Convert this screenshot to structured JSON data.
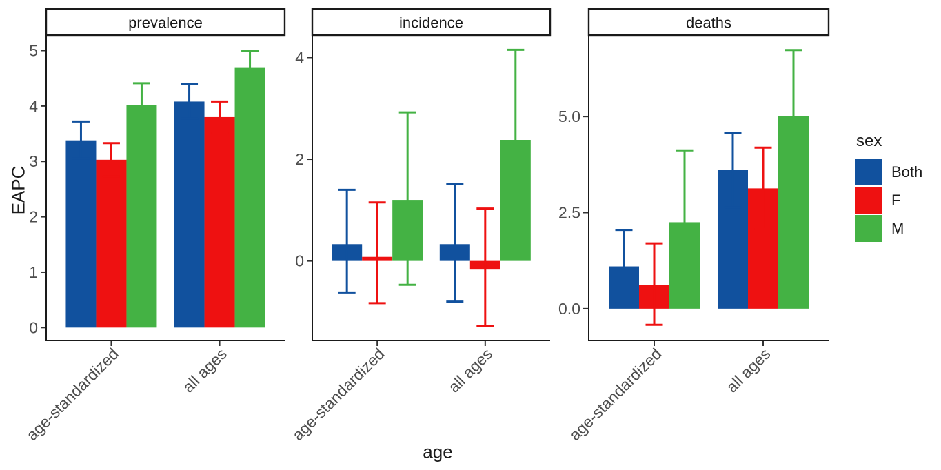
{
  "chart_data": {
    "type": "bar",
    "subtype": "grouped-faceted-with-error-bars",
    "xlabel": "age",
    "ylabel": "EAPC",
    "grid": false,
    "error_bars": true,
    "legend": {
      "title": "sex",
      "position": "right",
      "items": [
        {
          "label": "Both",
          "color": "#11519E"
        },
        {
          "label": "F",
          "color": "#EE1111"
        },
        {
          "label": "M",
          "color": "#44B244"
        }
      ]
    },
    "categories": [
      "age-standardized",
      "all ages"
    ],
    "facets": [
      {
        "title": "prevalence",
        "ylim": [
          -0.22,
          5.28
        ],
        "yticks": [
          {
            "v": 0,
            "label": "0"
          },
          {
            "v": 1,
            "label": "1"
          },
          {
            "v": 2,
            "label": "2"
          },
          {
            "v": 3,
            "label": "3"
          },
          {
            "v": 4,
            "label": "4"
          },
          {
            "v": 5,
            "label": "5"
          }
        ],
        "series": [
          {
            "name": "Both",
            "values": [
              3.38,
              4.08
            ],
            "ci_low": [
              3.05,
              3.77
            ],
            "ci_high": [
              3.72,
              4.39
            ]
          },
          {
            "name": "F",
            "values": [
              3.03,
              3.8
            ],
            "ci_low": [
              2.73,
              3.52
            ],
            "ci_high": [
              3.33,
              4.08
            ]
          },
          {
            "name": "M",
            "values": [
              4.02,
              4.7
            ],
            "ci_low": [
              3.63,
              4.4
            ],
            "ci_high": [
              4.41,
              5.0
            ]
          }
        ]
      },
      {
        "title": "incidence",
        "ylim": [
          -1.55,
          4.44
        ],
        "yticks": [
          {
            "v": 0,
            "label": "0"
          },
          {
            "v": 2,
            "label": "2"
          },
          {
            "v": 4,
            "label": "4"
          }
        ],
        "series": [
          {
            "name": "Both",
            "values": [
              0.33,
              0.33
            ],
            "ci_low": [
              -0.62,
              -0.8
            ],
            "ci_high": [
              1.4,
              1.51
            ]
          },
          {
            "name": "F",
            "values": [
              0.08,
              -0.17
            ],
            "ci_low": [
              -0.83,
              -1.28
            ],
            "ci_high": [
              1.15,
              1.03
            ]
          },
          {
            "name": "M",
            "values": [
              1.2,
              2.38
            ],
            "ci_low": [
              -0.47,
              0.61
            ],
            "ci_high": [
              2.92,
              4.15
            ]
          }
        ]
      },
      {
        "title": "deaths",
        "ylim": [
          -0.81,
          7.12
        ],
        "yticks": [
          {
            "v": 0,
            "label": "0.0"
          },
          {
            "v": 2.5,
            "label": "2.5"
          },
          {
            "v": 5,
            "label": "5.0"
          }
        ],
        "series": [
          {
            "name": "Both",
            "values": [
              1.1,
              3.61
            ],
            "ci_low": [
              0.15,
              2.64
            ],
            "ci_high": [
              2.05,
              4.58
            ]
          },
          {
            "name": "F",
            "values": [
              0.62,
              3.13
            ],
            "ci_low": [
              -0.42,
              2.07
            ],
            "ci_high": [
              1.7,
              4.19
            ]
          },
          {
            "name": "M",
            "values": [
              2.25,
              5.01
            ],
            "ci_low": [
              0.4,
              3.29
            ],
            "ci_high": [
              4.12,
              6.73
            ]
          }
        ]
      }
    ]
  }
}
